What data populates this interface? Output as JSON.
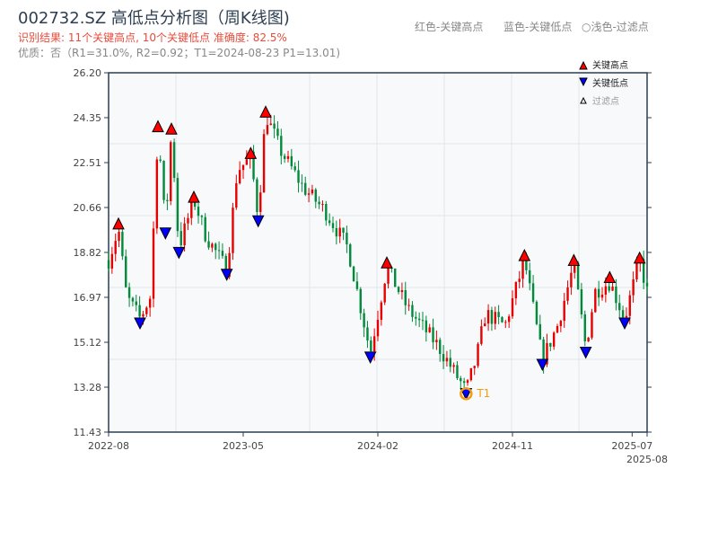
{
  "title": "002732.SZ 高低点分析图（周K线图)",
  "subtitle": "识别结果: 11个关键高点, 10个关键低点  准确度: 82.5%",
  "quality": "优质：否（R1=31.0%, R2=0.92；T1=2024-08-23 P1=13.01)",
  "top_legend": [
    "红色-关键高点",
    "蓝色-关键低点",
    "○浅色-过滤点"
  ],
  "colors": {
    "up": "#e60000",
    "down": "#008a3a",
    "high": "#ff0000",
    "low": "#0000ff",
    "t1": "#f39c12",
    "bg": "#f7f9fb"
  },
  "chart_data": {
    "type": "candlestick",
    "title": "002732.SZ 高低点分析图（周K线图)",
    "ylim": [
      11.43,
      26.2
    ],
    "xlim_months_since_2022_08": [
      0,
      36
    ],
    "yticks": [
      "11.43",
      "13.28",
      "15.12",
      "16.97",
      "18.82",
      "20.66",
      "22.51",
      "24.35",
      "26.20"
    ],
    "xticks": [
      {
        "m": 0,
        "label": "2022-08"
      },
      {
        "m": 9,
        "label": "2023-05"
      },
      {
        "m": 18,
        "label": "2024-02"
      },
      {
        "m": 27,
        "label": "2024-11"
      },
      {
        "m": 35,
        "label": "2025-07"
      },
      {
        "m": 36,
        "label": "2025-08"
      }
    ],
    "price_path": [
      [
        0,
        18.5
      ],
      [
        0.66,
        19.8
      ],
      [
        1.2,
        17.0
      ],
      [
        2.1,
        16.1
      ],
      [
        2.8,
        17.0
      ],
      [
        3.3,
        23.9
      ],
      [
        3.8,
        19.8
      ],
      [
        4.2,
        23.8
      ],
      [
        4.7,
        19.0
      ],
      [
        5.7,
        21.0
      ],
      [
        6.5,
        19.5
      ],
      [
        7.9,
        18.1
      ],
      [
        8.6,
        22.2
      ],
      [
        9.5,
        22.7
      ],
      [
        10.0,
        20.3
      ],
      [
        10.5,
        24.5
      ],
      [
        11.5,
        23.0
      ],
      [
        13,
        21.5
      ],
      [
        14.5,
        20.5
      ],
      [
        16,
        19.0
      ],
      [
        17.5,
        14.7
      ],
      [
        18.6,
        18.2
      ],
      [
        20,
        16.5
      ],
      [
        22,
        15.0
      ],
      [
        23.9,
        13.1
      ],
      [
        24.6,
        14.5
      ],
      [
        25.2,
        16.3
      ],
      [
        26.5,
        15.8
      ],
      [
        27.8,
        18.5
      ],
      [
        29,
        14.4
      ],
      [
        30,
        15.8
      ],
      [
        31.1,
        18.3
      ],
      [
        31.9,
        14.9
      ],
      [
        32.5,
        17.2
      ],
      [
        33.5,
        17.6
      ],
      [
        34.5,
        16.1
      ],
      [
        35.5,
        18.5
      ],
      [
        36,
        17.2
      ]
    ],
    "key_highs": [
      [
        0.66,
        20.0
      ],
      [
        3.3,
        24.0
      ],
      [
        4.2,
        23.9
      ],
      [
        5.7,
        21.1
      ],
      [
        9.5,
        22.9
      ],
      [
        10.5,
        24.6
      ],
      [
        18.6,
        18.4
      ],
      [
        27.8,
        18.7
      ],
      [
        31.1,
        18.5
      ],
      [
        33.5,
        17.8
      ],
      [
        35.5,
        18.6
      ]
    ],
    "key_lows": [
      [
        2.1,
        15.9
      ],
      [
        3.8,
        19.6
      ],
      [
        4.7,
        18.8
      ],
      [
        7.9,
        17.9
      ],
      [
        10.0,
        20.1
      ],
      [
        17.5,
        14.5
      ],
      [
        23.9,
        13.0
      ],
      [
        29.0,
        14.2
      ],
      [
        31.9,
        14.7
      ],
      [
        34.5,
        15.9
      ]
    ],
    "t1": {
      "m": 23.9,
      "price": 13.01,
      "label": "T1"
    },
    "legend": [
      "关键高点",
      "关键低点",
      "过滤点"
    ],
    "legend_position": "top-right"
  }
}
